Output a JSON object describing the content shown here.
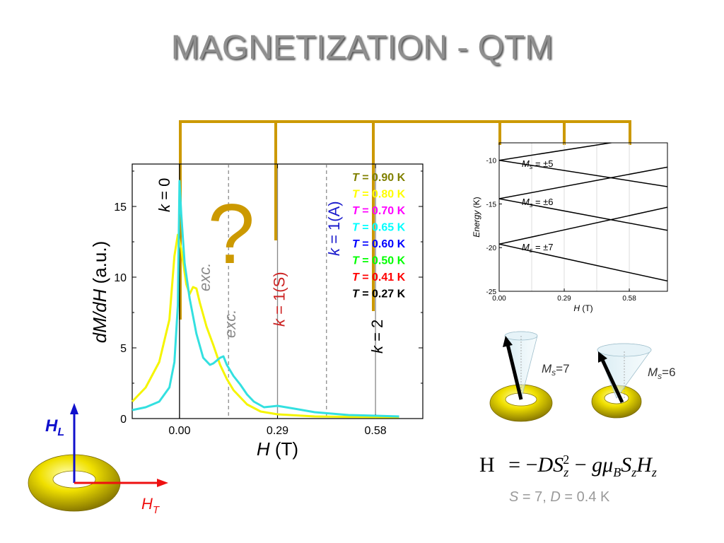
{
  "title": "MAGNETIZATION - QTM",
  "chart_data": [
    {
      "type": "line",
      "xlabel_italic": "H",
      "xlabel_unit": "(T)",
      "ylabel_italic": "dM/dH",
      "ylabel_unit": "(a.u.)",
      "xlim": [
        -0.14,
        0.72
      ],
      "ylim": [
        0,
        18
      ],
      "xticks": [
        {
          "value": 0.0,
          "label": "0.00"
        },
        {
          "value": 0.29,
          "label": "0.29"
        },
        {
          "value": 0.58,
          "label": "0.58"
        }
      ],
      "yticks": [
        {
          "value": 0,
          "label": "0"
        },
        {
          "value": 5,
          "label": "5"
        },
        {
          "value": 10,
          "label": "10"
        },
        {
          "value": 15,
          "label": "15"
        }
      ],
      "legend": [
        {
          "label": "= 0.90 K",
          "color": "#808000"
        },
        {
          "label": "= 0.80 K",
          "color": "#ffff00"
        },
        {
          "label": "= 0.70 K",
          "color": "#ff00ff"
        },
        {
          "label": "= 0.65 K",
          "color": "#00ffff"
        },
        {
          "label": "= 0.60 K",
          "color": "#0000ff"
        },
        {
          "label": "= 0.50 K",
          "color": "#00ff00"
        },
        {
          "label": "= 0.41 K",
          "color": "#ff0000"
        },
        {
          "label": "= 0.27 K",
          "color": "#000000"
        }
      ],
      "legend_symbol": "T",
      "series": [
        {
          "color": "#f5f500",
          "points": [
            [
              -0.14,
              1.2
            ],
            [
              -0.1,
              2.2
            ],
            [
              -0.06,
              4.0
            ],
            [
              -0.03,
              7.0
            ],
            [
              -0.015,
              11.5
            ],
            [
              -0.005,
              13.0
            ],
            [
              0.005,
              12.0
            ],
            [
              0.02,
              9.5
            ],
            [
              0.03,
              8.8
            ],
            [
              0.04,
              9.3
            ],
            [
              0.05,
              9.2
            ],
            [
              0.06,
              8.2
            ],
            [
              0.08,
              6.5
            ],
            [
              0.1,
              5.2
            ],
            [
              0.12,
              3.8
            ],
            [
              0.14,
              2.8
            ],
            [
              0.16,
              2.0
            ],
            [
              0.2,
              1.0
            ],
            [
              0.24,
              0.5
            ],
            [
              0.29,
              0.3
            ],
            [
              0.4,
              0.15
            ],
            [
              0.5,
              0.12
            ],
            [
              0.6,
              0.1
            ],
            [
              0.65,
              0.1
            ]
          ]
        },
        {
          "color": "#33e0e0",
          "points": [
            [
              -0.14,
              0.6
            ],
            [
              -0.1,
              0.8
            ],
            [
              -0.06,
              1.2
            ],
            [
              -0.03,
              2.2
            ],
            [
              -0.015,
              4.0
            ],
            [
              -0.005,
              8.0
            ],
            [
              0.0,
              16.8
            ],
            [
              0.005,
              14.5
            ],
            [
              0.015,
              11.0
            ],
            [
              0.03,
              8.5
            ],
            [
              0.05,
              6.0
            ],
            [
              0.07,
              4.3
            ],
            [
              0.09,
              3.8
            ],
            [
              0.1,
              3.9
            ],
            [
              0.12,
              4.3
            ],
            [
              0.13,
              4.4
            ],
            [
              0.14,
              3.8
            ],
            [
              0.16,
              3.0
            ],
            [
              0.18,
              2.4
            ],
            [
              0.2,
              1.7
            ],
            [
              0.22,
              1.2
            ],
            [
              0.25,
              0.8
            ],
            [
              0.29,
              0.9
            ],
            [
              0.34,
              0.7
            ],
            [
              0.4,
              0.45
            ],
            [
              0.5,
              0.25
            ],
            [
              0.58,
              0.2
            ],
            [
              0.65,
              0.15
            ]
          ]
        }
      ],
      "vlines": [
        {
          "x": 0.0,
          "style": "solid",
          "color": "#000000",
          "label_var": "k",
          "label_value": "= 0",
          "label_color": "#000000"
        },
        {
          "x": 0.145,
          "style": "dashed",
          "color": "#777777",
          "label": "exc.",
          "label_color": "#8a8a8a"
        },
        {
          "x": 0.29,
          "style": "solid",
          "color": "#888888",
          "label_var": "k",
          "label_value": "= 1(S)",
          "label_color": "#cc2222"
        },
        {
          "x": 0.435,
          "style": "dashed",
          "color": "#777777",
          "label_var": "k",
          "label_value": "= 1(A)",
          "label_color": "#1a1acc"
        },
        {
          "x": 0.58,
          "style": "solid",
          "color": "#888888",
          "label_var": "k",
          "label_value": "= 2",
          "label_color": "#000000"
        }
      ],
      "annotations": [
        "exc.",
        "?"
      ]
    },
    {
      "type": "line",
      "ylabel_italic": "Energy",
      "ylabel_unit": "(K)",
      "xlabel_italic": "H",
      "xlabel_unit": "(T)",
      "xlim": [
        0.0,
        0.75
      ],
      "ylim": [
        -25,
        -8
      ],
      "xticks": [
        {
          "value": 0.0,
          "label": "0.00"
        },
        {
          "value": 0.29,
          "label": "0.29"
        },
        {
          "value": 0.58,
          "label": "0.58"
        }
      ],
      "yticks": [
        {
          "value": -10,
          "label": "-10"
        },
        {
          "value": -15,
          "label": "-15"
        },
        {
          "value": -20,
          "label": "-20"
        },
        {
          "value": -25,
          "label": "-25"
        }
      ],
      "level_labels": [
        "= ±5",
        "= ±6",
        "= ±7"
      ],
      "level_symbol": "M",
      "level_subscript": "s"
    }
  ],
  "bracket": {
    "color": "#cc9900"
  },
  "question_mark": "?",
  "spin_labels": [
    {
      "value": "=7"
    },
    {
      "value": "=6"
    }
  ],
  "field_labels": {
    "longitudinal": "H",
    "longitudinal_sub": "L",
    "transverse": "H",
    "transverse_sub": "T"
  },
  "formula": {
    "lhs": "H",
    "rhs_text": "= −DS",
    "params_text": "= 7, ",
    "params_S": "S",
    "params_D": "D",
    "params_D_value": "= 0.4 K"
  }
}
